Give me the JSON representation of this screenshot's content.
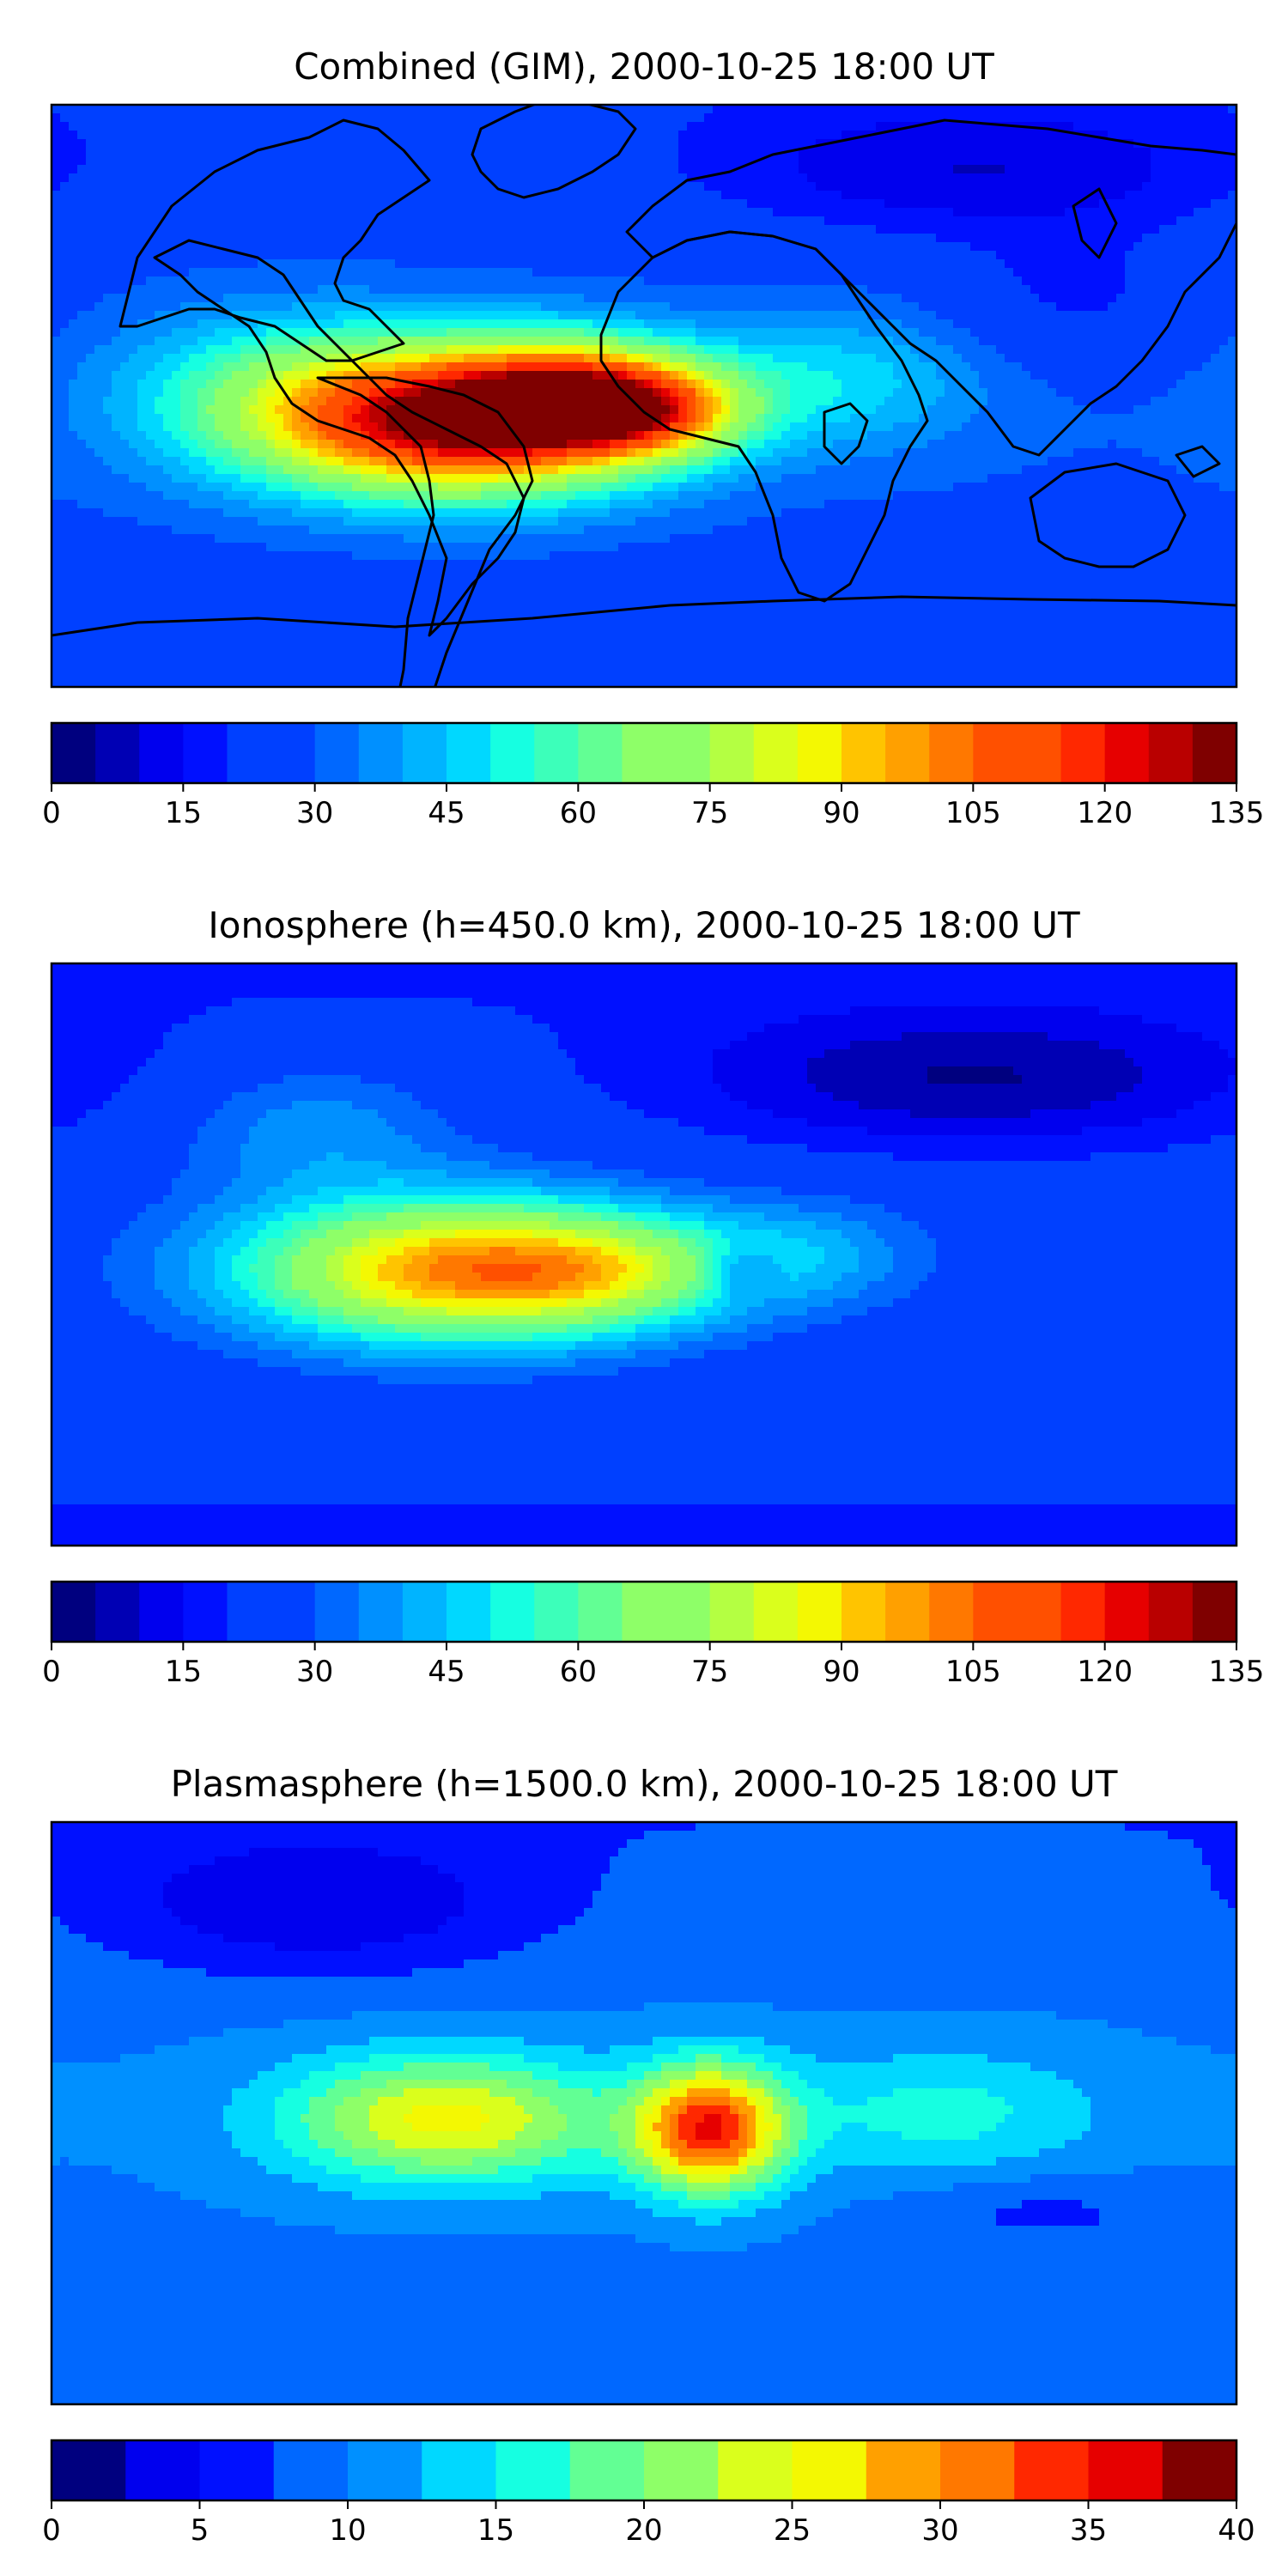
{
  "colormap": [
    "#00007f",
    "#0000b4",
    "#0000ee",
    "#0010ff",
    "#0040ff",
    "#0068ff",
    "#0090ff",
    "#00b4ff",
    "#00d8ff",
    "#16ffe1",
    "#3cffba",
    "#62ff94",
    "#8eff68",
    "#b4ff42",
    "#daff1c",
    "#f4f802",
    "#ffc400",
    "#ffa000",
    "#ff7800",
    "#ff5000",
    "#ff2800",
    "#e60000",
    "#b90000",
    "#7f0000"
  ],
  "panels": [
    {
      "title": "Combined (GIM), 2000-10-25 18:00 UT",
      "levels": [
        0,
        5,
        10,
        15,
        20,
        25,
        30,
        35,
        40,
        45,
        50,
        55,
        60,
        65,
        70,
        75,
        80,
        85,
        90,
        95,
        100,
        105,
        110,
        115,
        120,
        125,
        130,
        135
      ],
      "vmax": 135,
      "cbar_ticks": [
        "0",
        "15",
        "30",
        "45",
        "60",
        "75",
        "90",
        "105",
        "120",
        "135"
      ],
      "base_value": 30,
      "features": [
        {
          "lon": -55,
          "lat": -8,
          "amp": 98,
          "sx": 40,
          "sy": 16
        },
        {
          "lon": -20,
          "lat": 0,
          "amp": 55,
          "sx": 25,
          "sy": 12
        },
        {
          "lon": 5,
          "lat": -5,
          "amp": 40,
          "sx": 20,
          "sy": 10
        },
        {
          "lon": -110,
          "lat": 0,
          "amp": 25,
          "sx": 35,
          "sy": 18
        },
        {
          "lon": 60,
          "lat": 5,
          "amp": 18,
          "sx": 30,
          "sy": 15
        },
        {
          "lon": 100,
          "lat": 70,
          "amp": -18,
          "sx": 60,
          "sy": 15
        },
        {
          "lon": 130,
          "lat": 30,
          "amp": -10,
          "sx": 30,
          "sy": 15
        }
      ]
    },
    {
      "title": "Ionosphere  (h=450.0 km), 2000-10-25 18:00 UT",
      "levels": [
        0,
        5,
        10,
        15,
        20,
        25,
        30,
        35,
        40,
        45,
        50,
        55,
        60,
        65,
        70,
        75,
        80,
        85,
        90,
        95,
        100,
        105,
        110,
        115,
        120,
        125,
        130,
        135
      ],
      "vmax": 135,
      "cbar_ticks": [
        "0",
        "15",
        "30",
        "45",
        "60",
        "75",
        "90",
        "105",
        "120",
        "135"
      ],
      "base_value": 25,
      "features": [
        {
          "lon": -60,
          "lat": -5,
          "amp": 70,
          "sx": 45,
          "sy": 16
        },
        {
          "lon": -10,
          "lat": -5,
          "amp": 30,
          "sx": 30,
          "sy": 12
        },
        {
          "lon": 30,
          "lat": -5,
          "amp": -15,
          "sx": 8,
          "sy": 6
        },
        {
          "lon": 50,
          "lat": 0,
          "amp": 15,
          "sx": 25,
          "sy": 12
        },
        {
          "lon": -100,
          "lat": 40,
          "amp": 15,
          "sx": 30,
          "sy": 15
        },
        {
          "lon": 100,
          "lat": 55,
          "amp": -20,
          "sx": 60,
          "sy": 15
        }
      ]
    },
    {
      "title": "Plasmasphere (h=1500.0 km), 2000-10-25 18:00 UT",
      "levels": [
        0,
        2.5,
        5,
        7.5,
        10,
        12.5,
        15,
        17.5,
        20,
        22.5,
        25,
        27.5,
        30,
        32.5,
        35,
        37.5,
        40
      ],
      "vmax": 40,
      "cbar_ticks": [
        "0",
        "5",
        "10",
        "15",
        "20",
        "25",
        "30",
        "35",
        "40"
      ],
      "base_value": 10,
      "features": [
        {
          "lon": 20,
          "lat": -5,
          "amp": 24,
          "sx": 16,
          "sy": 14
        },
        {
          "lon": -60,
          "lat": -2,
          "amp": 16,
          "sx": 35,
          "sy": 14
        },
        {
          "lon": 90,
          "lat": 0,
          "amp": 6,
          "sx": 35,
          "sy": 14
        },
        {
          "lon": -100,
          "lat": 65,
          "amp": -7,
          "sx": 45,
          "sy": 15
        },
        {
          "lon": 120,
          "lat": -30,
          "amp": -3,
          "sx": 30,
          "sy": 8
        }
      ]
    }
  ]
}
